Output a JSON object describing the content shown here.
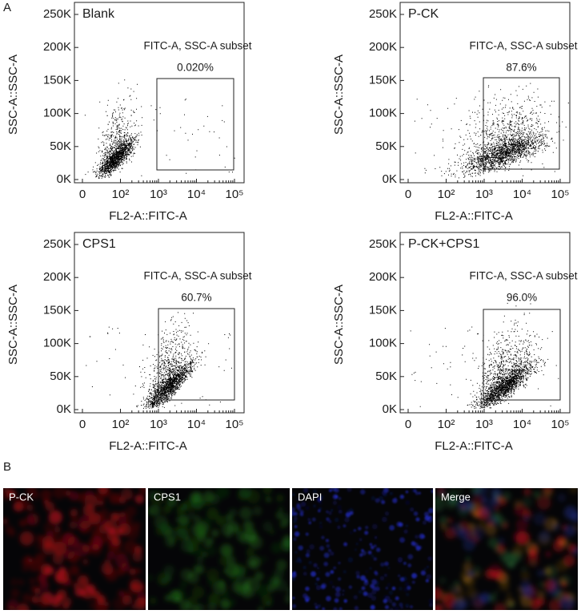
{
  "panel_a": {
    "label": "A",
    "plots": [
      {
        "title": "Blank",
        "gate_name": "FITC-A, SSC-A subset",
        "gate_percent": "0.020%",
        "x_label": "FL2-A::FITC-A",
        "y_label": "SSC-A::SSC-A",
        "xticks": [
          "0",
          "10²",
          "10³",
          "10⁴",
          "10⁵"
        ],
        "yticks": [
          "0K",
          "50K",
          "100K",
          "150K",
          "200K",
          "250K"
        ]
      },
      {
        "title": "P-CK",
        "gate_name": "FITC-A, SSC-A subset",
        "gate_percent": "87.6%",
        "x_label": "FL2-A::FITC-A",
        "y_label": "SSC-A::SSC-A",
        "xticks": [
          "0",
          "10²",
          "10³",
          "10⁴",
          "10⁵"
        ],
        "yticks": [
          "0K",
          "50K",
          "100K",
          "150K",
          "200K",
          "250K"
        ]
      },
      {
        "title": "CPS1",
        "gate_name": "FITC-A, SSC-A subset",
        "gate_percent": "60.7%",
        "x_label": "FL2-A::FITC-A",
        "y_label": "SSC-A::SSC-A",
        "xticks": [
          "0",
          "10²",
          "10³",
          "10⁴",
          "10⁵"
        ],
        "yticks": [
          "0K",
          "50K",
          "100K",
          "150K",
          "200K",
          "250K"
        ]
      },
      {
        "title": "P-CK+CPS1",
        "gate_name": "FITC-A, SSC-A subset",
        "gate_percent": "96.0%",
        "x_label": "FL2-A::FITC-A",
        "y_label": "SSC-A::SSC-A",
        "xticks": [
          "0",
          "10²",
          "10³",
          "10⁴",
          "10⁵"
        ],
        "yticks": [
          "0K",
          "50K",
          "100K",
          "150K",
          "200K",
          "250K"
        ]
      }
    ]
  },
  "panel_b": {
    "label": "B",
    "images": [
      {
        "label": "P-CK"
      },
      {
        "label": "CPS1"
      },
      {
        "label": "DAPI"
      },
      {
        "label": "Merge"
      }
    ]
  }
}
